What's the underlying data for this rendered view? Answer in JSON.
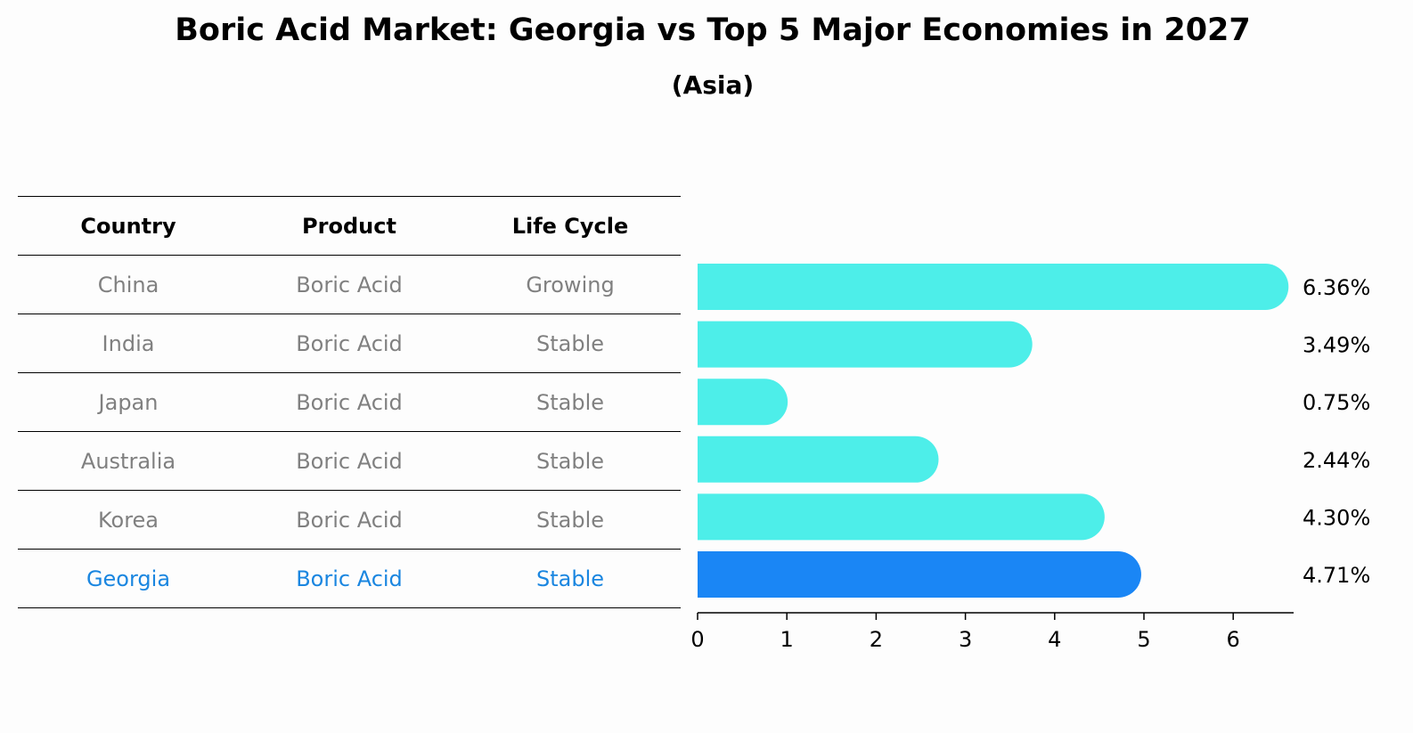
{
  "title": "Boric Acid Market: Georgia vs Top 5 Major Economies in 2027",
  "subtitle": "(Asia)",
  "table": {
    "headers": [
      "Country",
      "Product",
      "Life Cycle"
    ],
    "rows": [
      {
        "country": "China",
        "product": "Boric Acid",
        "life_cycle": "Growing"
      },
      {
        "country": "India",
        "product": "Boric Acid",
        "life_cycle": "Stable"
      },
      {
        "country": "Japan",
        "product": "Boric Acid",
        "life_cycle": "Stable"
      },
      {
        "country": "Australia",
        "product": "Boric Acid",
        "life_cycle": "Stable"
      },
      {
        "country": "Korea",
        "product": "Boric Acid",
        "life_cycle": "Stable"
      },
      {
        "country": "Georgia",
        "product": "Boric Acid",
        "life_cycle": "Stable"
      }
    ]
  },
  "chart_data": {
    "type": "bar",
    "orientation": "horizontal",
    "categories": [
      "China",
      "India",
      "Japan",
      "Australia",
      "Korea",
      "Georgia"
    ],
    "values": [
      6.36,
      3.49,
      0.75,
      2.44,
      4.3,
      4.71
    ],
    "value_labels": [
      "6.36%",
      "3.49%",
      "0.75%",
      "2.44%",
      "4.30%",
      "4.71%"
    ],
    "xlim": [
      0,
      6.7
    ],
    "xticks": [
      0,
      1,
      2,
      3,
      4,
      5,
      6
    ],
    "grid": false,
    "colors": {
      "default": "#4deee9",
      "highlight": "#1a86f5"
    },
    "highlight_category": "Georgia"
  }
}
